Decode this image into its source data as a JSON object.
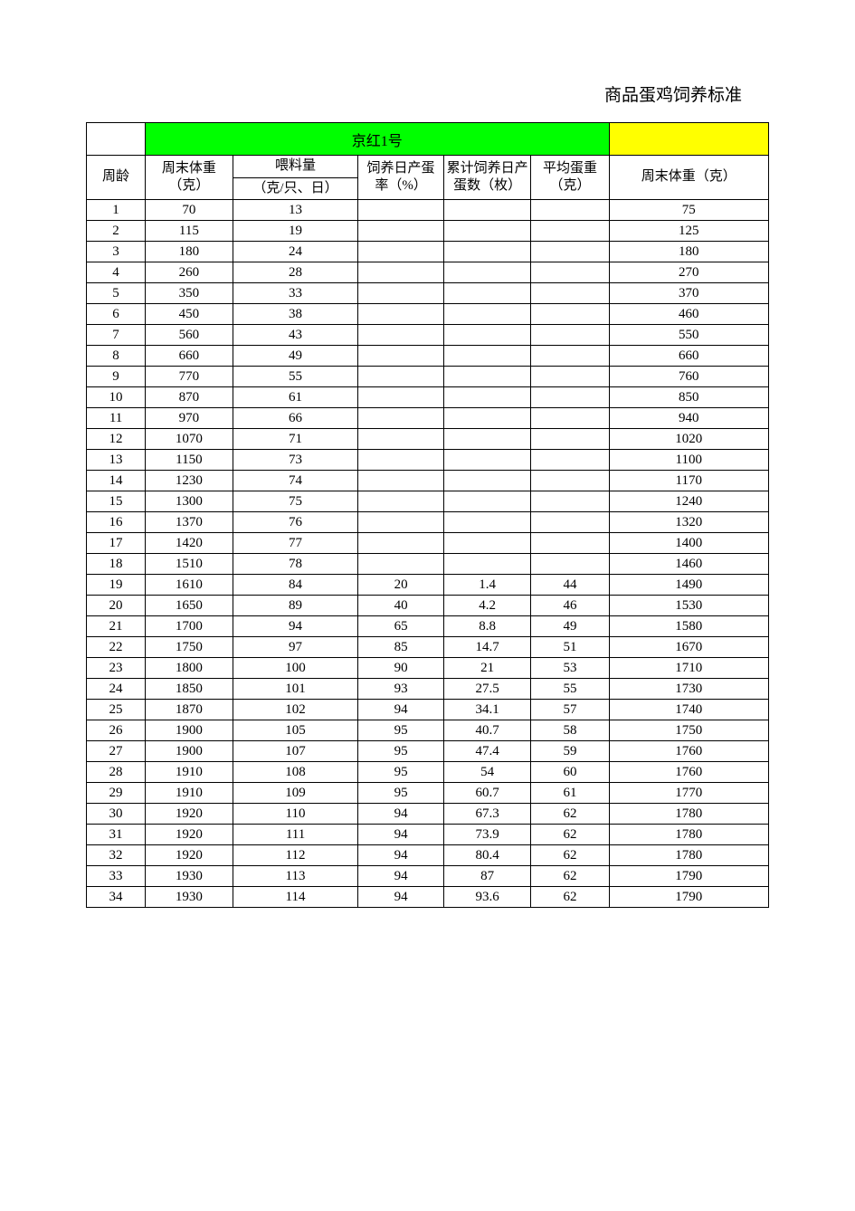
{
  "title": "商品蛋鸡饲养标准",
  "group_label": "京红1号",
  "columns": {
    "week": "周龄",
    "body_weight": "周末体重（克）",
    "feed_top": "喂料量",
    "feed_unit": "（克/只、日）",
    "lay_rate": "饲养日产蛋率（%）",
    "cum_eggs": "累计饲养日产蛋数（枚）",
    "avg_egg": "平均蛋重（克）",
    "body_weight2": "周末体重（克）"
  },
  "colors": {
    "green": "#00ff00",
    "yellow": "#ffff00",
    "border": "#000000",
    "bg": "#ffffff",
    "text": "#000000"
  },
  "rows": [
    {
      "w": "1",
      "bw": "70",
      "feed": "13",
      "rate": "",
      "cum": "",
      "egg": "",
      "bw2": "75"
    },
    {
      "w": "2",
      "bw": "115",
      "feed": "19",
      "rate": "",
      "cum": "",
      "egg": "",
      "bw2": "125"
    },
    {
      "w": "3",
      "bw": "180",
      "feed": "24",
      "rate": "",
      "cum": "",
      "egg": "",
      "bw2": "180"
    },
    {
      "w": "4",
      "bw": "260",
      "feed": "28",
      "rate": "",
      "cum": "",
      "egg": "",
      "bw2": "270"
    },
    {
      "w": "5",
      "bw": "350",
      "feed": "33",
      "rate": "",
      "cum": "",
      "egg": "",
      "bw2": "370"
    },
    {
      "w": "6",
      "bw": "450",
      "feed": "38",
      "rate": "",
      "cum": "",
      "egg": "",
      "bw2": "460"
    },
    {
      "w": "7",
      "bw": "560",
      "feed": "43",
      "rate": "",
      "cum": "",
      "egg": "",
      "bw2": "550"
    },
    {
      "w": "8",
      "bw": "660",
      "feed": "49",
      "rate": "",
      "cum": "",
      "egg": "",
      "bw2": "660"
    },
    {
      "w": "9",
      "bw": "770",
      "feed": "55",
      "rate": "",
      "cum": "",
      "egg": "",
      "bw2": "760"
    },
    {
      "w": "10",
      "bw": "870",
      "feed": "61",
      "rate": "",
      "cum": "",
      "egg": "",
      "bw2": "850"
    },
    {
      "w": "11",
      "bw": "970",
      "feed": "66",
      "rate": "",
      "cum": "",
      "egg": "",
      "bw2": "940"
    },
    {
      "w": "12",
      "bw": "1070",
      "feed": "71",
      "rate": "",
      "cum": "",
      "egg": "",
      "bw2": "1020"
    },
    {
      "w": "13",
      "bw": "1150",
      "feed": "73",
      "rate": "",
      "cum": "",
      "egg": "",
      "bw2": "1100"
    },
    {
      "w": "14",
      "bw": "1230",
      "feed": "74",
      "rate": "",
      "cum": "",
      "egg": "",
      "bw2": "1170"
    },
    {
      "w": "15",
      "bw": "1300",
      "feed": "75",
      "rate": "",
      "cum": "",
      "egg": "",
      "bw2": "1240"
    },
    {
      "w": "16",
      "bw": "1370",
      "feed": "76",
      "rate": "",
      "cum": "",
      "egg": "",
      "bw2": "1320"
    },
    {
      "w": "17",
      "bw": "1420",
      "feed": "77",
      "rate": "",
      "cum": "",
      "egg": "",
      "bw2": "1400"
    },
    {
      "w": "18",
      "bw": "1510",
      "feed": "78",
      "rate": "",
      "cum": "",
      "egg": "",
      "bw2": "1460"
    },
    {
      "w": "19",
      "bw": "1610",
      "feed": "84",
      "rate": "20",
      "cum": "1.4",
      "egg": "44",
      "bw2": "1490"
    },
    {
      "w": "20",
      "bw": "1650",
      "feed": "89",
      "rate": "40",
      "cum": "4.2",
      "egg": "46",
      "bw2": "1530"
    },
    {
      "w": "21",
      "bw": "1700",
      "feed": "94",
      "rate": "65",
      "cum": "8.8",
      "egg": "49",
      "bw2": "1580"
    },
    {
      "w": "22",
      "bw": "1750",
      "feed": "97",
      "rate": "85",
      "cum": "14.7",
      "egg": "51",
      "bw2": "1670"
    },
    {
      "w": "23",
      "bw": "1800",
      "feed": "100",
      "rate": "90",
      "cum": "21",
      "egg": "53",
      "bw2": "1710"
    },
    {
      "w": "24",
      "bw": "1850",
      "feed": "101",
      "rate": "93",
      "cum": "27.5",
      "egg": "55",
      "bw2": "1730"
    },
    {
      "w": "25",
      "bw": "1870",
      "feed": "102",
      "rate": "94",
      "cum": "34.1",
      "egg": "57",
      "bw2": "1740"
    },
    {
      "w": "26",
      "bw": "1900",
      "feed": "105",
      "rate": "95",
      "cum": "40.7",
      "egg": "58",
      "bw2": "1750"
    },
    {
      "w": "27",
      "bw": "1900",
      "feed": "107",
      "rate": "95",
      "cum": "47.4",
      "egg": "59",
      "bw2": "1760"
    },
    {
      "w": "28",
      "bw": "1910",
      "feed": "108",
      "rate": "95",
      "cum": "54",
      "egg": "60",
      "bw2": "1760"
    },
    {
      "w": "29",
      "bw": "1910",
      "feed": "109",
      "rate": "95",
      "cum": "60.7",
      "egg": "61",
      "bw2": "1770"
    },
    {
      "w": "30",
      "bw": "1920",
      "feed": "110",
      "rate": "94",
      "cum": "67.3",
      "egg": "62",
      "bw2": "1780"
    },
    {
      "w": "31",
      "bw": "1920",
      "feed": "111",
      "rate": "94",
      "cum": "73.9",
      "egg": "62",
      "bw2": "1780"
    },
    {
      "w": "32",
      "bw": "1920",
      "feed": "112",
      "rate": "94",
      "cum": "80.4",
      "egg": "62",
      "bw2": "1780"
    },
    {
      "w": "33",
      "bw": "1930",
      "feed": "113",
      "rate": "94",
      "cum": "87",
      "egg": "62",
      "bw2": "1790"
    },
    {
      "w": "34",
      "bw": "1930",
      "feed": "114",
      "rate": "94",
      "cum": "93.6",
      "egg": "62",
      "bw2": "1790"
    }
  ]
}
